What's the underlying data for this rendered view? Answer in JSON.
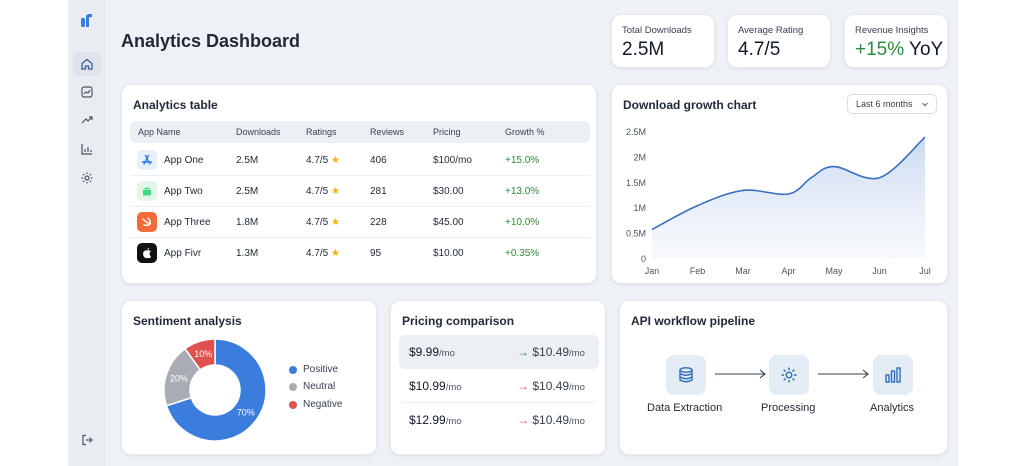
{
  "page": {
    "title": "Analytics Dashboard"
  },
  "sidebar": {
    "items": [
      {
        "icon": "home-icon",
        "active": true
      },
      {
        "icon": "chart-box-icon",
        "active": false
      },
      {
        "icon": "trend-icon",
        "active": false
      },
      {
        "icon": "bar-chart-icon",
        "active": false
      },
      {
        "icon": "gear-icon",
        "active": false
      }
    ],
    "bottom_icon": "logout-icon"
  },
  "kpis": [
    {
      "label": "Total Downloads",
      "value": "2.5M"
    },
    {
      "label": "Average Rating",
      "value": "4.7/5"
    },
    {
      "label": "Revenue Insights",
      "value_highlight": "+15%",
      "value_suffix": " YoY"
    }
  ],
  "table": {
    "title": "Analytics table",
    "columns": [
      "App Name",
      "Downloads",
      "Ratings",
      "Reviews",
      "Pricing",
      "Growth %"
    ],
    "rows": [
      {
        "icon": "app-store-icon",
        "name": "App One",
        "downloads": "2.5M",
        "rating": "4.7/5",
        "reviews": "406",
        "pricing": "$100/mo",
        "growth": "+15.0%"
      },
      {
        "icon": "android-icon",
        "name": "App Two",
        "downloads": "2.5M",
        "rating": "4.7/5",
        "reviews": "281",
        "pricing": "$30.00",
        "growth": "+13.0%"
      },
      {
        "icon": "swift-icon",
        "name": "App Three",
        "downloads": "1.8M",
        "rating": "4.7/5",
        "reviews": "228",
        "pricing": "$45.00",
        "growth": "+10.0%"
      },
      {
        "icon": "apple-icon",
        "name": "App Fivr",
        "downloads": "1.3M",
        "rating": "4.7/5",
        "reviews": "95",
        "pricing": "$10.00",
        "growth": "+0.35%"
      }
    ]
  },
  "growth_chart": {
    "title": "Download growth chart",
    "range_selected": "Last 6 months"
  },
  "sentiment": {
    "title": "Sentiment analysis",
    "legend": [
      "Positive",
      "Neutral",
      "Negative"
    ]
  },
  "pricing": {
    "title": "Pricing comparison",
    "unit": "/mo",
    "rows": [
      {
        "old": "$9.99",
        "new": "$10.49",
        "highlight": true
      },
      {
        "old": "$10.99",
        "new": "$10.49",
        "highlight": false
      },
      {
        "old": "$12.99",
        "new": "$10.49",
        "highlight": false
      }
    ]
  },
  "pipeline": {
    "title": "API workflow pipeline",
    "steps": [
      {
        "label": "Data Extraction",
        "icon": "database-icon"
      },
      {
        "label": "Processing",
        "icon": "gear-icon"
      },
      {
        "label": "Analytics",
        "icon": "bar-chart-icon"
      }
    ]
  },
  "colors": {
    "accent": "#3b7ddd",
    "positive": "#2e8b3d",
    "pie_positive": "#3b7ddd",
    "pie_neutral": "#a9adb3",
    "pie_negative": "#e0524d",
    "arrow_green": "#2e8b3d",
    "arrow_red": "#e0524d"
  },
  "chart_data": [
    {
      "type": "area",
      "x": [
        "Jan",
        "Feb",
        "Mar",
        "Apr",
        "May",
        "Jun",
        "Jul"
      ],
      "y_ticks": [
        "0",
        "0.5M",
        "1M",
        "1.5M",
        "2M",
        "2.5M"
      ],
      "ylim": [
        0,
        2.5
      ],
      "points": [
        {
          "x": 0.0,
          "y": 0.58
        },
        {
          "x": 1.0,
          "y": 1.05
        },
        {
          "x": 2.0,
          "y": 1.35
        },
        {
          "x": 3.0,
          "y": 1.28
        },
        {
          "x": 3.5,
          "y": 1.6
        },
        {
          "x": 4.0,
          "y": 1.82
        },
        {
          "x": 5.0,
          "y": 1.6
        },
        {
          "x": 6.0,
          "y": 2.4
        }
      ],
      "grid": false
    },
    {
      "type": "pie",
      "slices": [
        {
          "name": "Positive",
          "value": 70,
          "label": "70%"
        },
        {
          "name": "Neutral",
          "value": 20,
          "label": "20%"
        },
        {
          "name": "Negative",
          "value": 10,
          "label": "10%"
        }
      ],
      "donut": true,
      "legend": "right"
    }
  ]
}
